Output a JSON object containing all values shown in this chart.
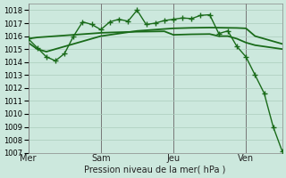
{
  "title": "Pression niveau de la mer( hPa )",
  "bg_color": "#cce8dd",
  "grid_color": "#aaccbb",
  "line_color": "#1a6b1a",
  "ylim": [
    1007,
    1018.5
  ],
  "yticks": [
    1007,
    1008,
    1009,
    1010,
    1011,
    1012,
    1013,
    1014,
    1015,
    1016,
    1017,
    1018
  ],
  "day_labels": [
    "Mer",
    "Sam",
    "Jeu",
    "Ven"
  ],
  "day_positions": [
    0,
    8,
    16,
    24
  ],
  "xlim": [
    0,
    28
  ],
  "series1_x": [
    0,
    1,
    2,
    3,
    4,
    5,
    6,
    7,
    8,
    9,
    10,
    11,
    12,
    13,
    14,
    15,
    16,
    17,
    18,
    19,
    20,
    21,
    22,
    23,
    24,
    25,
    26,
    27,
    28
  ],
  "series1_y": [
    1015.8,
    1015.9,
    1015.95,
    1016.0,
    1016.05,
    1016.1,
    1016.15,
    1016.2,
    1016.25,
    1016.28,
    1016.3,
    1016.32,
    1016.34,
    1016.35,
    1016.36,
    1016.37,
    1016.1,
    1016.12,
    1016.14,
    1016.15,
    1016.16,
    1016.0,
    1016.0,
    1015.8,
    1015.5,
    1015.3,
    1015.2,
    1015.1,
    1015.0
  ],
  "series2_x": [
    0,
    1,
    2,
    3,
    4,
    5,
    6,
    7,
    8,
    9,
    10,
    11,
    12,
    13,
    14,
    15,
    16,
    17,
    18,
    19,
    20,
    21,
    22,
    23,
    24,
    25,
    26,
    27,
    28
  ],
  "series2_y": [
    1015.5,
    1015.0,
    1014.8,
    1015.0,
    1015.2,
    1015.4,
    1015.6,
    1015.8,
    1016.0,
    1016.1,
    1016.2,
    1016.3,
    1016.4,
    1016.45,
    1016.5,
    1016.55,
    1016.6,
    1016.62,
    1016.64,
    1016.65,
    1016.66,
    1016.65,
    1016.64,
    1016.63,
    1016.6,
    1016.0,
    1015.8,
    1015.6,
    1015.4
  ],
  "series3_x": [
    0,
    1,
    2,
    3,
    4,
    5,
    6,
    7,
    8,
    9,
    10,
    11,
    12,
    13,
    14,
    15,
    16,
    17,
    18,
    19,
    20,
    21,
    22,
    23,
    24,
    25,
    26,
    27,
    28
  ],
  "series3_y": [
    1015.8,
    1015.1,
    1014.4,
    1014.1,
    1014.65,
    1016.0,
    1017.1,
    1016.9,
    1016.5,
    1017.1,
    1017.3,
    1017.15,
    1018.0,
    1016.9,
    1017.0,
    1017.2,
    1017.3,
    1017.4,
    1017.35,
    1017.6,
    1017.65,
    1016.2,
    1016.4,
    1015.2,
    1014.4,
    1013.0,
    1011.6,
    1009.0,
    1007.1
  ]
}
